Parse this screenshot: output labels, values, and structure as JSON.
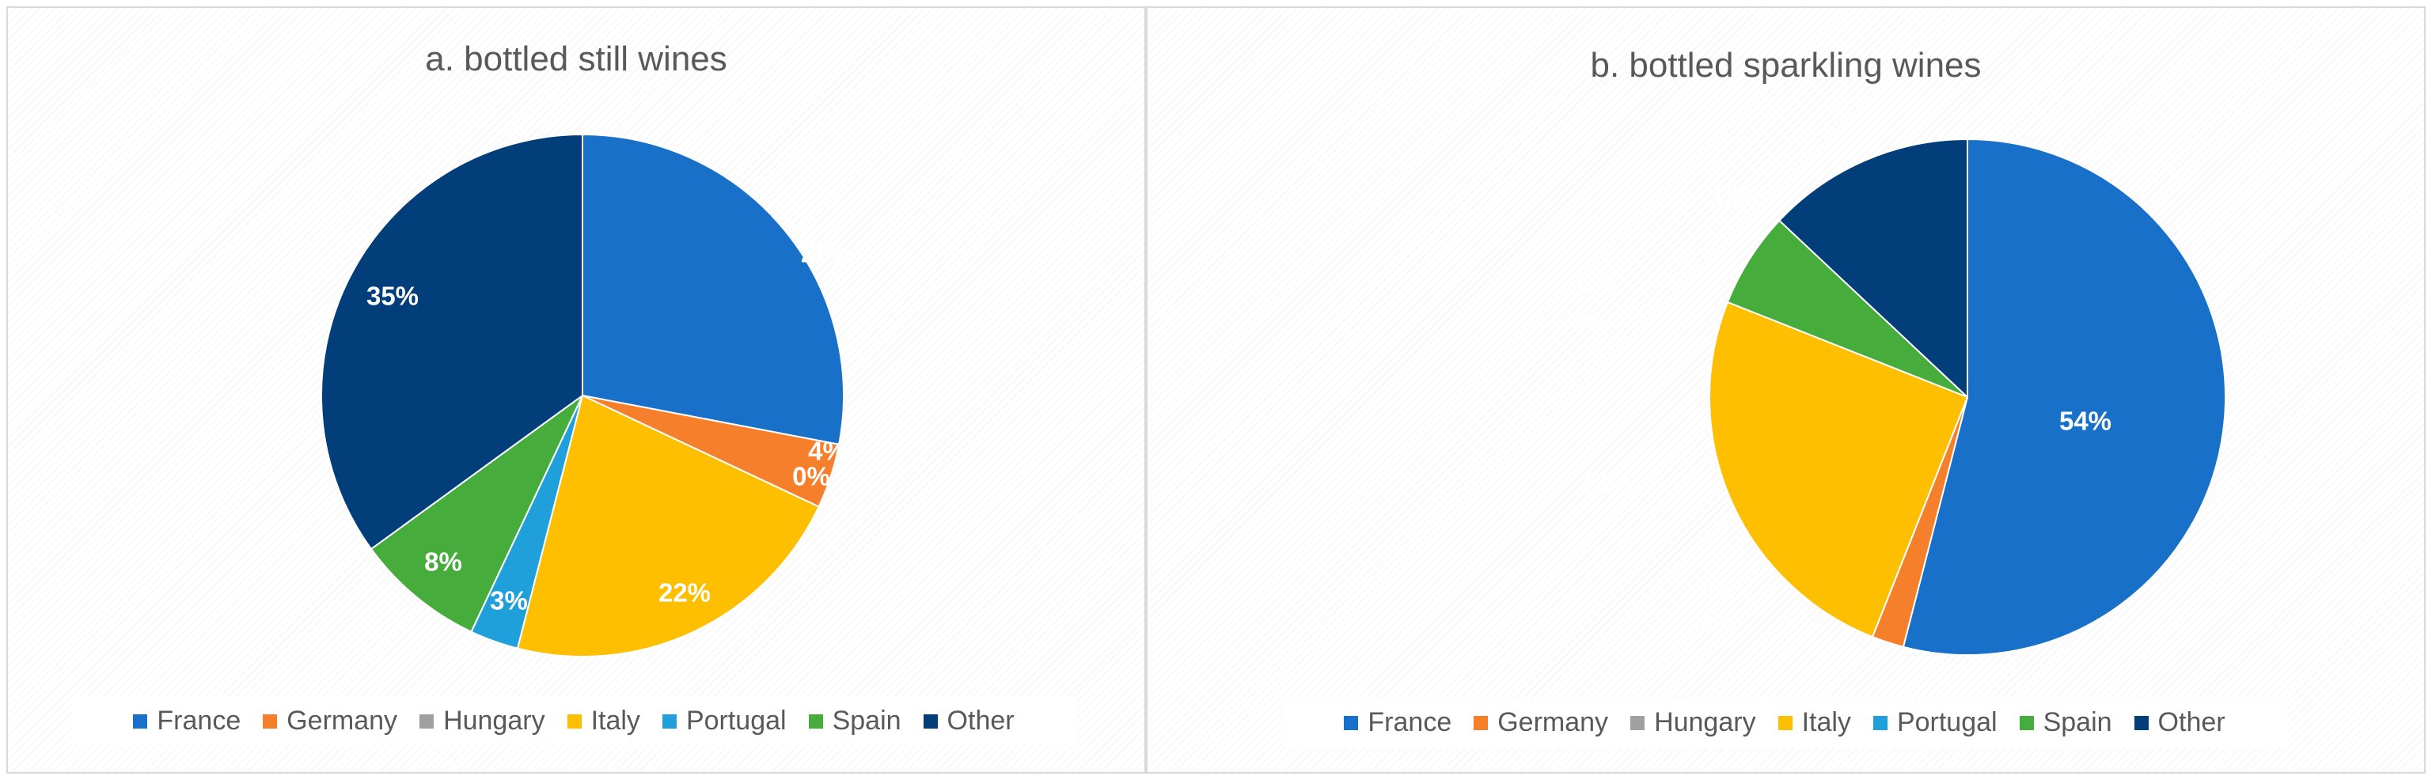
{
  "chart_data": [
    {
      "type": "pie",
      "title": "a. bottled still wines",
      "categories": [
        "France",
        "Germany",
        "Hungary",
        "Italy",
        "Portugal",
        "Spain",
        "Other"
      ],
      "values": [
        28,
        4,
        0,
        22,
        3,
        8,
        35
      ],
      "data_labels": [
        "28%",
        "4%",
        "0%",
        "22%",
        "3%",
        "8%",
        "35%"
      ],
      "colors": [
        "#1870c9",
        "#f57f2a",
        "#a0a0a0",
        "#fdbf00",
        "#20a0da",
        "#46ad3c",
        "#023e7a"
      ],
      "legend_position": "bottom"
    },
    {
      "type": "pie",
      "title": "b. bottled sparkling wines",
      "categories": [
        "France",
        "Germany",
        "Hungary",
        "Italy",
        "Portugal",
        "Spain",
        "Other"
      ],
      "values": [
        54,
        2,
        0,
        25,
        0,
        6,
        13
      ],
      "data_labels": [
        "54%",
        "2%",
        "0%",
        "25%",
        "0%",
        "6%",
        "13%"
      ],
      "colors": [
        "#1870c9",
        "#f57f2a",
        "#a0a0a0",
        "#fdbf00",
        "#20a0da",
        "#46ad3c",
        "#023e7a"
      ],
      "legend_position": "bottom"
    }
  ]
}
